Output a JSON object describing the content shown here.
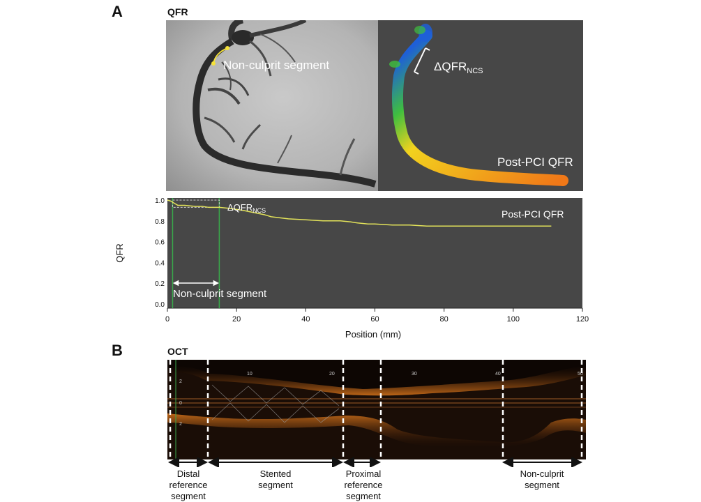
{
  "panel_a": {
    "letter": "A",
    "title": "QFR",
    "angio": {
      "label": "Non-culprit segment"
    },
    "reconstruction": {
      "delta_label_main": "ΔQFR",
      "delta_label_sub": "NCS",
      "post_pci_label": "Post-PCI QFR",
      "colors": {
        "background": "#474747",
        "high": "#1e5fd8",
        "mid": "#3fbf3f",
        "yellow": "#f2d21e",
        "low": "#f07818"
      }
    },
    "chart": {
      "ylabel": "QFR",
      "xlabel": "Position (mm)",
      "delta_label_main": "ΔQFR",
      "delta_label_sub": "NCS",
      "post_pci_label": "Post-PCI QFR",
      "segment_label": "Non-culprit segment",
      "x_tick_labels": [
        "0",
        "20",
        "40",
        "60",
        "80",
        "100",
        "120"
      ],
      "y_tick_labels": [
        "1.0",
        "0.8",
        "0.6",
        "0.4",
        "0.2",
        "0.0"
      ],
      "colors": {
        "background": "#474747",
        "line": "#e3e35a",
        "marker": "#39a84a"
      }
    }
  },
  "panel_b": {
    "letter": "B",
    "title": "OCT",
    "scale_labels": [
      "10",
      "20",
      "30",
      "40",
      "50"
    ],
    "side_labels": [
      "2",
      "0",
      "2"
    ],
    "segments": [
      {
        "lines": [
          "Distal",
          "reference",
          "segment"
        ]
      },
      {
        "lines": [
          "Stented",
          "segment"
        ]
      },
      {
        "lines": [
          "Proximal",
          "reference",
          "segment"
        ]
      },
      {
        "lines": [
          "Non-culprit",
          "segment"
        ]
      }
    ]
  },
  "chart_data": {
    "type": "line",
    "title": "",
    "xlabel": "Position (mm)",
    "ylabel": "QFR",
    "xlim": [
      0,
      120
    ],
    "ylim": [
      0,
      1.0
    ],
    "x_ticks": [
      0,
      20,
      40,
      60,
      80,
      100,
      120
    ],
    "y_ticks": [
      0,
      0.2,
      0.4,
      0.6,
      0.8,
      1.0
    ],
    "series": [
      {
        "name": "Post-PCI QFR",
        "x": [
          0,
          1,
          2,
          3,
          5,
          8,
          10,
          12,
          15,
          18,
          20,
          22,
          25,
          28,
          30,
          35,
          40,
          45,
          50,
          53,
          55,
          58,
          60,
          65,
          70,
          75,
          80,
          90,
          100,
          111
        ],
        "y": [
          1.0,
          0.99,
          0.97,
          0.95,
          0.95,
          0.94,
          0.94,
          0.93,
          0.93,
          0.92,
          0.91,
          0.9,
          0.88,
          0.86,
          0.84,
          0.82,
          0.81,
          0.8,
          0.8,
          0.79,
          0.78,
          0.77,
          0.77,
          0.76,
          0.76,
          0.75,
          0.75,
          0.75,
          0.75,
          0.75
        ]
      }
    ],
    "non_culprit_segment_mm": [
      1.5,
      15
    ]
  }
}
